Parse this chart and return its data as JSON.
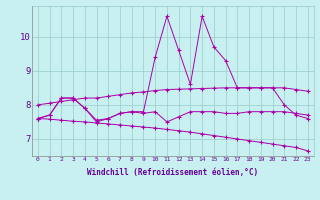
{
  "xlabel": "Windchill (Refroidissement éolien,°C)",
  "x": [
    0,
    1,
    2,
    3,
    4,
    5,
    6,
    7,
    8,
    9,
    10,
    11,
    12,
    13,
    14,
    15,
    16,
    17,
    18,
    19,
    20,
    21,
    22,
    23
  ],
  "line1": [
    7.6,
    7.7,
    8.2,
    8.2,
    7.9,
    7.55,
    7.6,
    7.75,
    7.8,
    7.75,
    7.8,
    7.5,
    7.65,
    7.8,
    7.8,
    7.8,
    7.75,
    7.75,
    7.8,
    7.8,
    7.8,
    7.8,
    7.75,
    7.7
  ],
  "line2": [
    7.6,
    7.7,
    8.2,
    8.2,
    7.9,
    7.5,
    7.6,
    7.75,
    7.8,
    7.8,
    9.4,
    10.6,
    9.6,
    8.6,
    10.6,
    9.7,
    9.3,
    8.5,
    8.5,
    8.5,
    8.5,
    8.0,
    7.7,
    7.6
  ],
  "line3": [
    8.0,
    8.05,
    8.1,
    8.15,
    8.2,
    8.2,
    8.25,
    8.3,
    8.35,
    8.38,
    8.42,
    8.45,
    8.46,
    8.47,
    8.48,
    8.49,
    8.5,
    8.5,
    8.5,
    8.5,
    8.5,
    8.5,
    8.45,
    8.4
  ],
  "line4": [
    7.6,
    7.58,
    7.55,
    7.52,
    7.5,
    7.47,
    7.44,
    7.41,
    7.38,
    7.35,
    7.32,
    7.28,
    7.24,
    7.2,
    7.15,
    7.1,
    7.05,
    7.0,
    6.95,
    6.9,
    6.85,
    6.8,
    6.75,
    6.65
  ],
  "line_color": "#aa00aa",
  "bg_color": "#c8f0f0",
  "grid_color": "#99cccc",
  "axis_color": "#660099",
  "ylim": [
    6.5,
    10.9
  ],
  "yticks": [
    7,
    8,
    9,
    10
  ],
  "xticks": [
    0,
    1,
    2,
    3,
    4,
    5,
    6,
    7,
    8,
    9,
    10,
    11,
    12,
    13,
    14,
    15,
    16,
    17,
    18,
    19,
    20,
    21,
    22,
    23
  ]
}
